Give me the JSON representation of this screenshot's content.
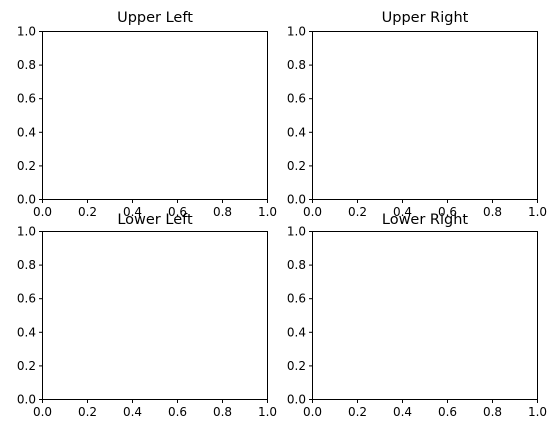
{
  "chart_data": [
    {
      "type": "line",
      "title": "Upper Left",
      "xlabel": "",
      "ylabel": "",
      "xlim": [
        0,
        1
      ],
      "ylim": [
        0,
        1
      ],
      "x_ticks": [
        "0.0",
        "0.2",
        "0.4",
        "0.6",
        "0.8",
        "1.0"
      ],
      "y_ticks": [
        "0.0",
        "0.2",
        "0.4",
        "0.6",
        "0.8",
        "1.0"
      ],
      "grid": false,
      "series": []
    },
    {
      "type": "line",
      "title": "Upper Right",
      "xlabel": "",
      "ylabel": "",
      "xlim": [
        0,
        1
      ],
      "ylim": [
        0,
        1
      ],
      "x_ticks": [
        "0.0",
        "0.2",
        "0.4",
        "0.6",
        "0.8",
        "1.0"
      ],
      "y_ticks": [
        "0.0",
        "0.2",
        "0.4",
        "0.6",
        "0.8",
        "1.0"
      ],
      "grid": false,
      "series": []
    },
    {
      "type": "line",
      "title": "Lower Left",
      "xlabel": "",
      "ylabel": "",
      "xlim": [
        0,
        1
      ],
      "ylim": [
        0,
        1
      ],
      "x_ticks": [
        "0.0",
        "0.2",
        "0.4",
        "0.6",
        "0.8",
        "1.0"
      ],
      "y_ticks": [
        "0.0",
        "0.2",
        "0.4",
        "0.6",
        "0.8",
        "1.0"
      ],
      "grid": false,
      "series": []
    },
    {
      "type": "line",
      "title": "Lower Right",
      "xlabel": "",
      "ylabel": "",
      "xlim": [
        0,
        1
      ],
      "ylim": [
        0,
        1
      ],
      "x_ticks": [
        "0.0",
        "0.2",
        "0.4",
        "0.6",
        "0.8",
        "1.0"
      ],
      "y_ticks": [
        "0.0",
        "0.2",
        "0.4",
        "0.6",
        "0.8",
        "1.0"
      ],
      "grid": false,
      "series": []
    }
  ]
}
